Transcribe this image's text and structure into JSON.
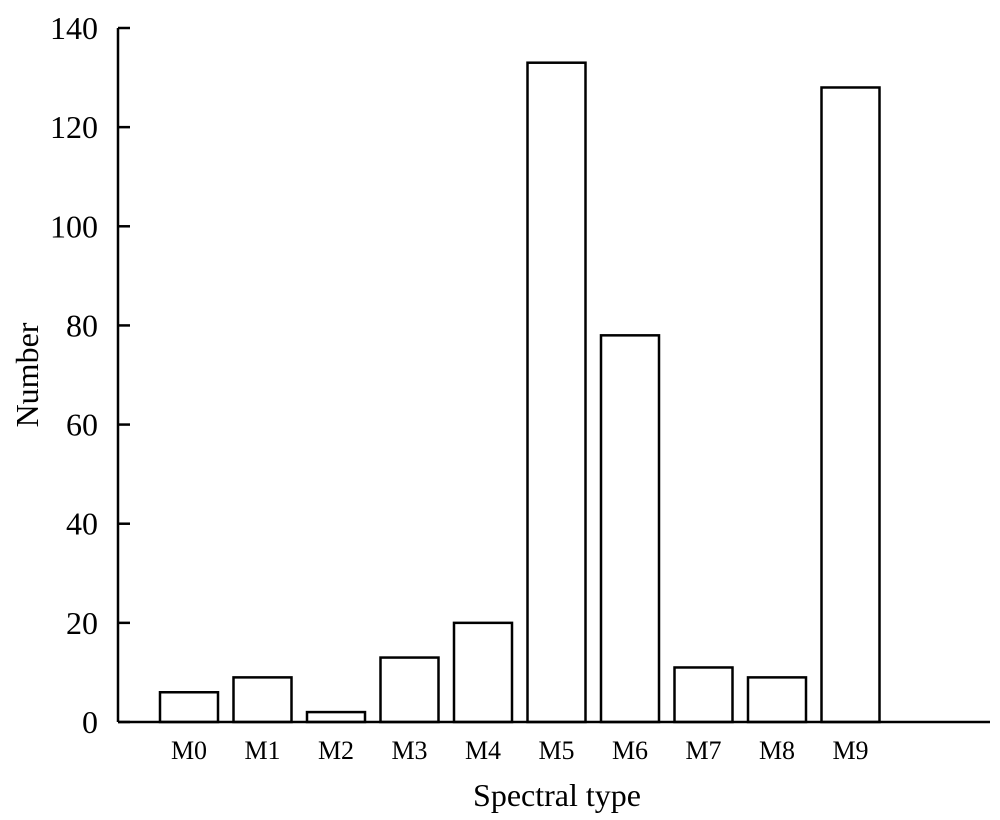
{
  "chart_data": {
    "type": "bar",
    "title": "",
    "xlabel": "Spectral type",
    "ylabel": "Number",
    "categories": [
      "M0",
      "M1",
      "M2",
      "M3",
      "M4",
      "M5",
      "M6",
      "M7",
      "M8",
      "M9"
    ],
    "values": [
      6,
      9,
      2,
      13,
      20,
      133,
      78,
      11,
      9,
      128
    ],
    "ylim": [
      0,
      140
    ],
    "yticks": [
      0,
      20,
      40,
      60,
      80,
      100,
      120,
      140
    ],
    "grid": false,
    "legend": "none",
    "bar_fill": "#ffffff",
    "bar_edge": "#000000"
  }
}
